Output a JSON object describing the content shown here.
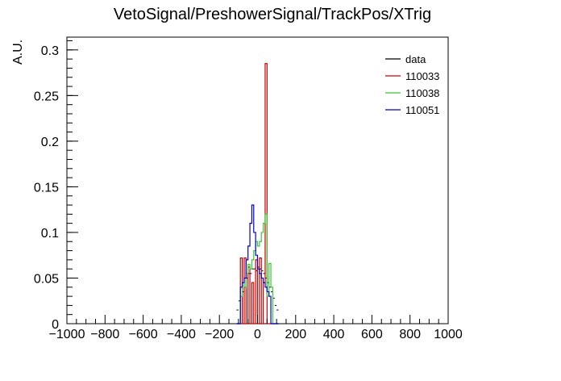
{
  "chart_data": {
    "type": "histogram",
    "title": "VetoSignal/PreshowerSignal/TrackPos/XTrig",
    "xlabel": "",
    "ylabel": "A.U.",
    "xlim": [
      -1000,
      1000
    ],
    "ylim": [
      0,
      0.314
    ],
    "x_ticks": [
      -1000,
      -800,
      -600,
      -400,
      -200,
      0,
      200,
      400,
      600,
      800,
      1000
    ],
    "x_tick_labels": [
      "−1000",
      "−800",
      "−600",
      "−400",
      "−200",
      "0",
      "200",
      "400",
      "600",
      "800",
      "1000"
    ],
    "y_ticks": [
      0,
      0.05,
      0.1,
      0.15,
      0.2,
      0.25,
      0.3
    ],
    "y_tick_labels": [
      "0",
      "0.05",
      "0.1",
      "0.15",
      "0.2",
      "0.25",
      "0.3"
    ],
    "legend_position": "top-right",
    "bin_edges": [
      -110,
      -100,
      -90,
      -80,
      -70,
      -60,
      -50,
      -40,
      -30,
      -20,
      -10,
      0,
      10,
      20,
      30,
      40,
      50,
      60,
      70,
      80,
      90,
      100,
      110
    ],
    "series": [
      {
        "name": "data",
        "color": "#000000",
        "style": "points",
        "values": [
          0.015,
          0.025,
          0.03,
          0.035,
          0.04,
          0.05,
          0.055,
          0.055,
          0.06,
          0.06,
          0.058,
          0.062,
          0.06,
          0.058,
          0.055,
          0.05,
          0.045,
          0.04,
          0.035,
          0.028,
          0.02,
          0.015
        ]
      },
      {
        "name": "110033",
        "color": "#cc0000",
        "style": "step",
        "values": [
          0,
          0,
          0.072,
          0,
          0.072,
          0,
          0.062,
          0,
          0.045,
          0,
          0.07,
          0,
          0.072,
          0,
          0.045,
          0.285,
          0,
          0,
          0,
          0,
          0,
          0
        ]
      },
      {
        "name": "110038",
        "color": "#33cc33",
        "style": "step",
        "values": [
          0,
          0,
          0.03,
          0.045,
          0.04,
          0.055,
          0.065,
          0.06,
          0.07,
          0.08,
          0.09,
          0.085,
          0.09,
          0.1,
          0.11,
          0.12,
          0.03,
          0.066,
          0.04,
          0,
          0,
          0
        ]
      },
      {
        "name": "110051",
        "color": "#0000cc",
        "style": "step",
        "values": [
          0,
          0,
          0.04,
          0.045,
          0.05,
          0.07,
          0.085,
          0.11,
          0.13,
          0.1,
          0.075,
          0.06,
          0.055,
          0.05,
          0.045,
          0.04,
          0.035,
          0.03,
          0,
          0,
          0,
          0
        ]
      }
    ]
  }
}
